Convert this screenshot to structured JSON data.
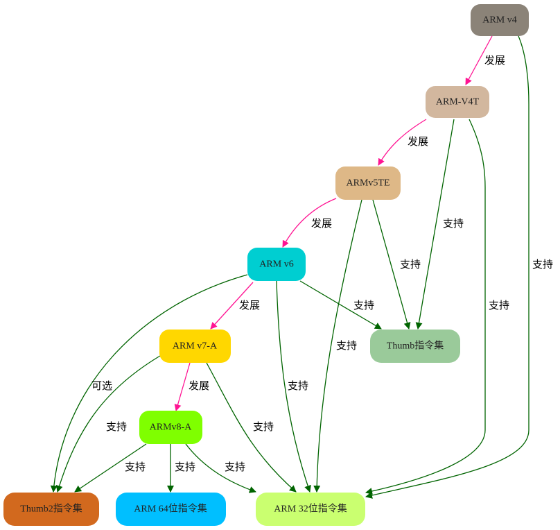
{
  "nodes": {
    "armv4": {
      "label": "ARM v4",
      "color": "#8b8378"
    },
    "armv4t": {
      "label": "ARM-V4T",
      "color": "#d2b79e"
    },
    "armv5te": {
      "label": "ARMv5TE",
      "color": "#deb887"
    },
    "armv6": {
      "label": "ARM v6",
      "color": "#00ced1"
    },
    "armv7a": {
      "label": "ARM v7-A",
      "color": "#ffd700"
    },
    "armv8a": {
      "label": "ARMv8-A",
      "color": "#7fff00"
    },
    "thumb": {
      "label": "Thumb指令集",
      "color": "#9aca9a"
    },
    "thumb2": {
      "label": "Thumb2指令集",
      "color": "#d2691e"
    },
    "arm64": {
      "label": "ARM 64位指令集",
      "color": "#00bfff"
    },
    "arm32": {
      "label": "ARM 32位指令集",
      "color": "#caff70"
    }
  },
  "edges": {
    "v4_v4t": "发展",
    "v4_arm32": "支持",
    "v4t_v5te": "发展",
    "v4t_thumb": "支持",
    "v4t_arm32": "支持",
    "v5te_v6": "发展",
    "v5te_thumb": "支持",
    "v5te_arm32": "支持",
    "v6_v7a": "发展",
    "v6_thumb": "支持",
    "v6_arm32": "支持",
    "v6_thumb2": "可选",
    "v7a_thumb2": "支持",
    "v7a_v8a": "发展",
    "v7a_arm32": "支持",
    "v8a_thumb2": "支持",
    "v8a_arm64": "支持",
    "v8a_arm32": "支持"
  },
  "colors": {
    "develop_edge": "#ff1493",
    "support_edge": "#006400"
  }
}
